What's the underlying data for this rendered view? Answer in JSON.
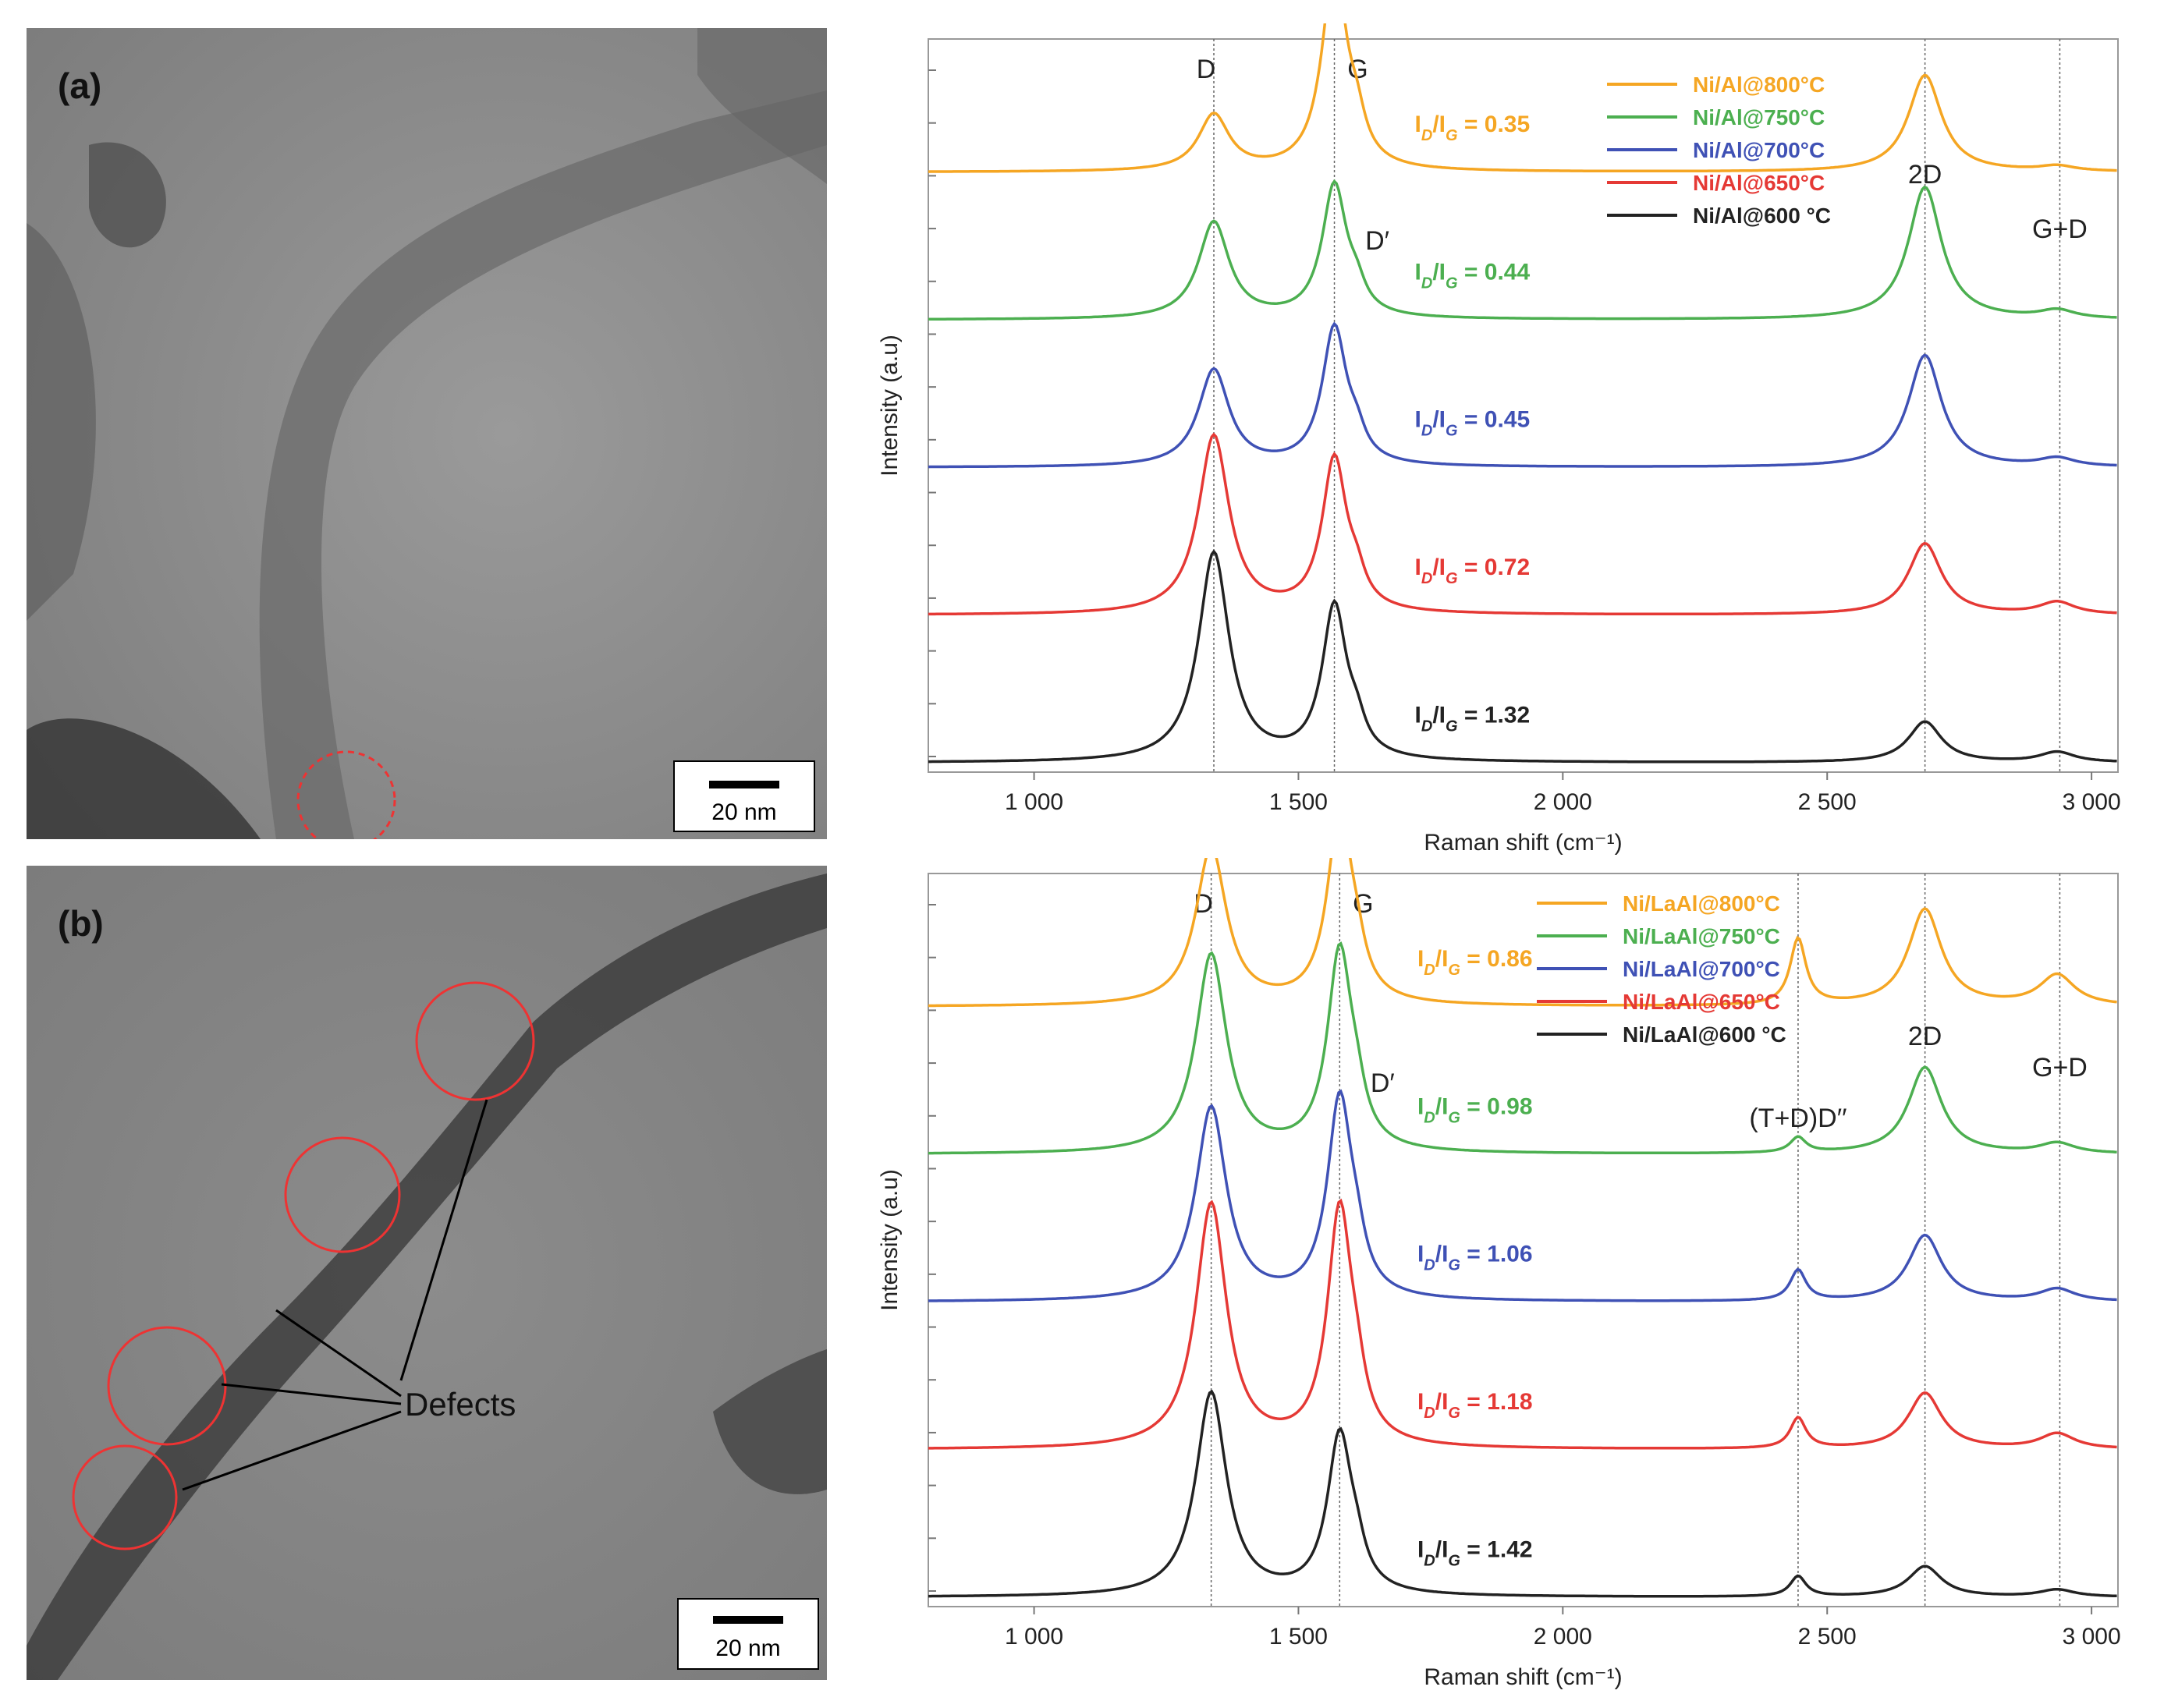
{
  "tem_panels": [
    {
      "label": "(a)",
      "scale_bar": "20 nm"
    },
    {
      "label": "(b)",
      "scale_bar": "20 nm",
      "annotation": "Defects"
    }
  ],
  "chart_data": [
    {
      "type": "line",
      "title": "",
      "xlabel": "Raman shift (cm⁻¹)",
      "ylabel": "Intensity (a.u)",
      "xlim": [
        800,
        3050
      ],
      "xticks": [
        1000,
        1500,
        2000,
        2500,
        3000
      ],
      "xtick_labels": [
        "1 000",
        "1 500",
        "2 000",
        "2 500",
        "3 000"
      ],
      "peak_lines": [
        {
          "label": "D",
          "x": 1340
        },
        {
          "label": "G",
          "x": 1568
        },
        {
          "label": "2D",
          "x": 2685
        },
        {
          "label": "G+D",
          "x": 2940
        }
      ],
      "extra_labels": [
        "D′"
      ],
      "series": [
        {
          "name": "Ni/Al@800°C",
          "color": "#f5a623",
          "id_ig": "0.35",
          "offset": 4,
          "peaks": {
            "D": 0.55,
            "G": 2.0,
            "2D": 0.95,
            "GD": 0.05
          }
        },
        {
          "name": "Ni/Al@750°C",
          "color": "#4caf50",
          "id_ig": "0.44",
          "offset": 3,
          "peaks": {
            "D": 0.95,
            "G": 1.3,
            "2D": 1.3,
            "GD": 0.08
          }
        },
        {
          "name": "Ni/Al@700°C",
          "color": "#3f51b5",
          "id_ig": "0.45",
          "offset": 2,
          "peaks": {
            "D": 0.95,
            "G": 1.35,
            "2D": 1.1,
            "GD": 0.08
          }
        },
        {
          "name": "Ni/Al@650°C",
          "color": "#e53935",
          "id_ig": "0.72",
          "offset": 1,
          "peaks": {
            "D": 1.75,
            "G": 1.5,
            "2D": 0.7,
            "GD": 0.12
          }
        },
        {
          "name": "Ni/Al@600 °C",
          "color": "#222222",
          "id_ig": "1.32",
          "offset": 0,
          "peaks": {
            "D": 2.05,
            "G": 1.5,
            "2D": 0.4,
            "GD": 0.1
          }
        }
      ]
    },
    {
      "type": "line",
      "title": "",
      "xlabel": "Raman shift (cm⁻¹)",
      "ylabel": "Intensity (a.u)",
      "xlim": [
        800,
        3050
      ],
      "xticks": [
        1000,
        1500,
        2000,
        2500,
        3000
      ],
      "xtick_labels": [
        "1 000",
        "1 500",
        "2 000",
        "2 500",
        "3 000"
      ],
      "peak_lines": [
        {
          "label": "D",
          "x": 1335
        },
        {
          "label": "G",
          "x": 1578
        },
        {
          "label": "(T+D)D′′",
          "x": 2445
        },
        {
          "label": "2D",
          "x": 2685
        },
        {
          "label": "G+D",
          "x": 2940
        }
      ],
      "extra_labels": [
        "D′"
      ],
      "series": [
        {
          "name": "Ni/LaAl@800°C",
          "color": "#f5a623",
          "id_ig": "0.86",
          "offset": 4,
          "peaks": {
            "D": 1.55,
            "G": 1.85,
            "TD": 0.65,
            "2D": 0.95,
            "GD": 0.3
          }
        },
        {
          "name": "Ni/LaAl@750°C",
          "color": "#4caf50",
          "id_ig": "0.98",
          "offset": 3,
          "peaks": {
            "D": 1.95,
            "G": 1.95,
            "TD": 0.15,
            "2D": 0.85,
            "GD": 0.1
          }
        },
        {
          "name": "Ni/LaAl@700°C",
          "color": "#3f51b5",
          "id_ig": "1.06",
          "offset": 2,
          "peaks": {
            "D": 1.9,
            "G": 1.95,
            "TD": 0.3,
            "2D": 0.65,
            "GD": 0.12
          }
        },
        {
          "name": "Ni/LaAl@650°C",
          "color": "#e53935",
          "id_ig": "1.18",
          "offset": 1,
          "peaks": {
            "D": 2.4,
            "G": 2.3,
            "TD": 0.3,
            "2D": 0.55,
            "GD": 0.15
          }
        },
        {
          "name": "Ni/LaAl@600 °C",
          "color": "#222222",
          "id_ig": "1.42",
          "offset": 0,
          "peaks": {
            "D": 2.0,
            "G": 1.55,
            "TD": 0.2,
            "2D": 0.3,
            "GD": 0.07
          }
        }
      ]
    }
  ]
}
